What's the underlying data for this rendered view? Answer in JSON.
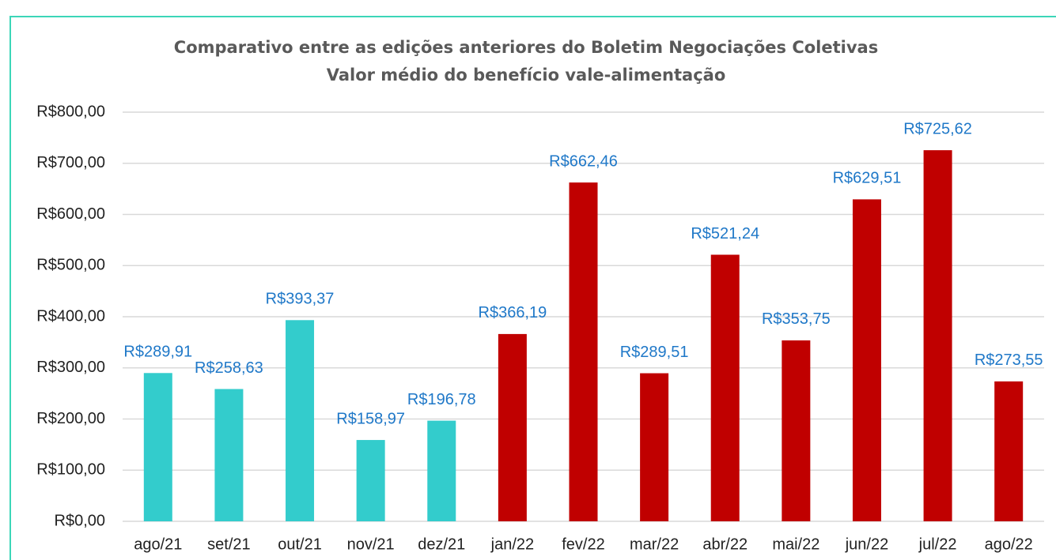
{
  "chart_data": {
    "type": "bar",
    "title": "Comparativo entre as edições anteriores do Boletim Negociações Coletivas",
    "subtitle": "Valor médio do benefício vale-alimentação",
    "categories": [
      "ago/21",
      "set/21",
      "out/21",
      "nov/21",
      "dez/21",
      "jan/22",
      "fev/22",
      "mar/22",
      "abr/22",
      "mai/22",
      "jun/22",
      "jul/22",
      "ago/22"
    ],
    "values": [
      289.91,
      258.63,
      393.37,
      158.97,
      196.78,
      366.19,
      662.46,
      289.51,
      521.24,
      353.75,
      629.51,
      725.62,
      273.55
    ],
    "value_labels": [
      "R$289,91",
      "R$258,63",
      "R$393,37",
      "R$158,97",
      "R$196,78",
      "R$366,19",
      "R$662,46",
      "R$289,51",
      "R$521,24",
      "R$353,75",
      "R$629,51",
      "R$725,62",
      "R$273,55"
    ],
    "colors": [
      "#33cccc",
      "#33cccc",
      "#33cccc",
      "#33cccc",
      "#33cccc",
      "#c00000",
      "#c00000",
      "#c00000",
      "#c00000",
      "#c00000",
      "#c00000",
      "#c00000",
      "#c00000"
    ],
    "ylim": [
      0,
      800
    ],
    "yticks": [
      {
        "value": 0,
        "label": "R$0,00"
      },
      {
        "value": 100,
        "label": "R$100,00"
      },
      {
        "value": 200,
        "label": "R$200,00"
      },
      {
        "value": 300,
        "label": "R$300,00"
      },
      {
        "value": 400,
        "label": "R$400,00"
      },
      {
        "value": 500,
        "label": "R$500,00"
      },
      {
        "value": 600,
        "label": "R$600,00"
      },
      {
        "value": 700,
        "label": "R$700,00"
      },
      {
        "value": 800,
        "label": "R$800,00"
      }
    ],
    "grid": true
  }
}
